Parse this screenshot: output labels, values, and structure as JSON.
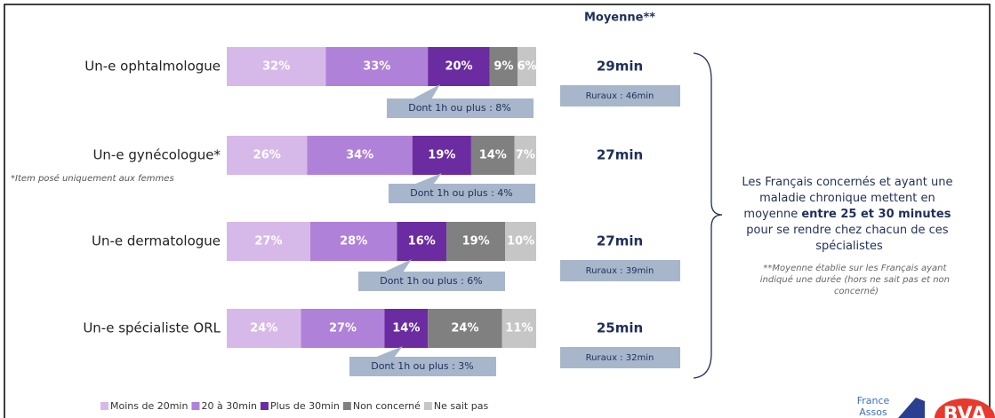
{
  "chart_data": {
    "type": "bar",
    "horizontal": true,
    "categories": [
      "Un-e ophtalmologue",
      "Un-e gynécologue*",
      "Un-e dermatologue",
      "Un-e spécialiste ORL"
    ],
    "series": [
      {
        "name": "Moins de 20min",
        "color": "#d7b9e9",
        "values": [
          32,
          26,
          27,
          24
        ],
        "value_labels": [
          "32%",
          "26%",
          "27%",
          "24%"
        ]
      },
      {
        "name": "20 à 30min",
        "color": "#b081d8",
        "values": [
          33,
          34,
          28,
          27
        ],
        "value_labels": [
          "33%",
          "34%",
          "28%",
          "27%"
        ]
      },
      {
        "name": "Plus de 30min",
        "color": "#6a2ca0",
        "values": [
          20,
          19,
          16,
          14
        ],
        "value_labels": [
          "20%",
          "19%",
          "16%",
          "14%"
        ]
      },
      {
        "name": "Non concerné",
        "color": "#808080",
        "values": [
          9,
          14,
          19,
          24
        ],
        "value_labels": [
          "9%",
          "14%",
          "19%",
          "24%"
        ]
      },
      {
        "name": "Ne sait pas",
        "color": "#c6c6c6",
        "values": [
          6,
          7,
          10,
          11
        ],
        "value_labels": [
          "6%",
          "7%",
          "10%",
          "11%"
        ]
      }
    ],
    "xlim": [
      0,
      100
    ],
    "average_header": "Moyenne**",
    "averages": [
      "29min",
      "27min",
      "27min",
      "25min"
    ],
    "rural": [
      "Ruraux : 46min",
      null,
      "Ruraux : 39min",
      "Ruraux : 32min"
    ],
    "long_trips": [
      "Dont 1h ou plus : 8%",
      "Dont 1h ou plus : 4%",
      "Dont 1h ou plus : 6%",
      "Dont 1h ou plus : 3%"
    ],
    "note": "*Item posé uniquement aux femmes",
    "summary": [
      "Les Français concernés et ayant une",
      "maladie chronique mettent en",
      "moyenne ",
      "entre 25 et 30 minutes",
      "pour se rendre chez chacun de ces",
      "spécialistes"
    ],
    "footnote": [
      "**Moyenne établie sur les Français ayant",
      "indiqué une durée (hors ne sait pas et non",
      "concerné)"
    ],
    "logos": [
      "France",
      "Assos",
      "BVA"
    ]
  }
}
